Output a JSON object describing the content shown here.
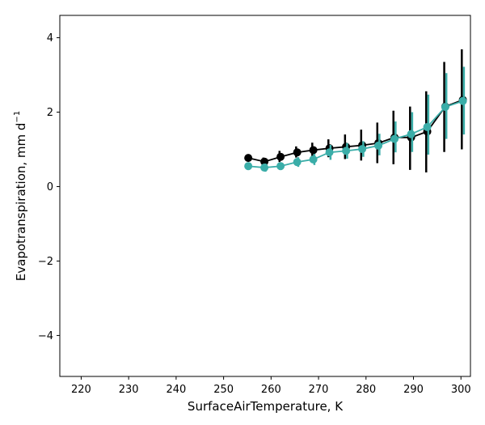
{
  "chart_data": {
    "type": "line",
    "xlabel": "SurfaceAirTemperature,  K",
    "ylabel_main": "Evapotranspiration,  mm d",
    "ylabel_sup": "−1",
    "xlim": [
      215.5,
      302
    ],
    "ylim": [
      -5.1,
      4.6
    ],
    "xticks": [
      220,
      230,
      240,
      250,
      260,
      270,
      280,
      290,
      300
    ],
    "yticks": [
      -4,
      -2,
      0,
      2,
      4
    ],
    "ytick_labels": [
      "−4",
      "−2",
      "0",
      "2",
      "4"
    ],
    "grid": false,
    "x": [
      255.2,
      258.6,
      262.0,
      265.5,
      268.9,
      272.3,
      275.8,
      279.2,
      282.6,
      286.0,
      289.5,
      292.9,
      296.7,
      300.4
    ],
    "series": [
      {
        "color": "#000000",
        "values": [
          0.77,
          0.67,
          0.8,
          0.92,
          0.98,
          1.03,
          1.07,
          1.11,
          1.17,
          1.32,
          1.32,
          1.48,
          2.15,
          2.33
        ],
        "err_low": [
          0.69,
          0.56,
          0.66,
          0.78,
          0.8,
          0.79,
          0.74,
          0.7,
          0.63,
          0.6,
          0.45,
          0.38,
          0.93,
          1.0
        ],
        "err_high": [
          0.85,
          0.78,
          0.96,
          1.08,
          1.18,
          1.27,
          1.4,
          1.53,
          1.72,
          2.04,
          2.15,
          2.56,
          3.35,
          3.69
        ]
      },
      {
        "color": "#3aada8",
        "values": [
          0.55,
          0.51,
          0.55,
          0.66,
          0.73,
          0.92,
          0.96,
          1.01,
          1.1,
          1.28,
          1.41,
          1.6,
          2.14,
          2.3
        ],
        "err_low": [
          0.49,
          0.4,
          0.46,
          0.53,
          0.58,
          0.72,
          0.75,
          0.8,
          0.84,
          0.92,
          0.93,
          0.86,
          1.28,
          1.4
        ],
        "err_high": [
          0.61,
          0.62,
          0.64,
          0.79,
          0.88,
          1.12,
          1.17,
          1.22,
          1.42,
          1.75,
          2.0,
          2.47,
          3.05,
          3.22
        ]
      }
    ]
  }
}
